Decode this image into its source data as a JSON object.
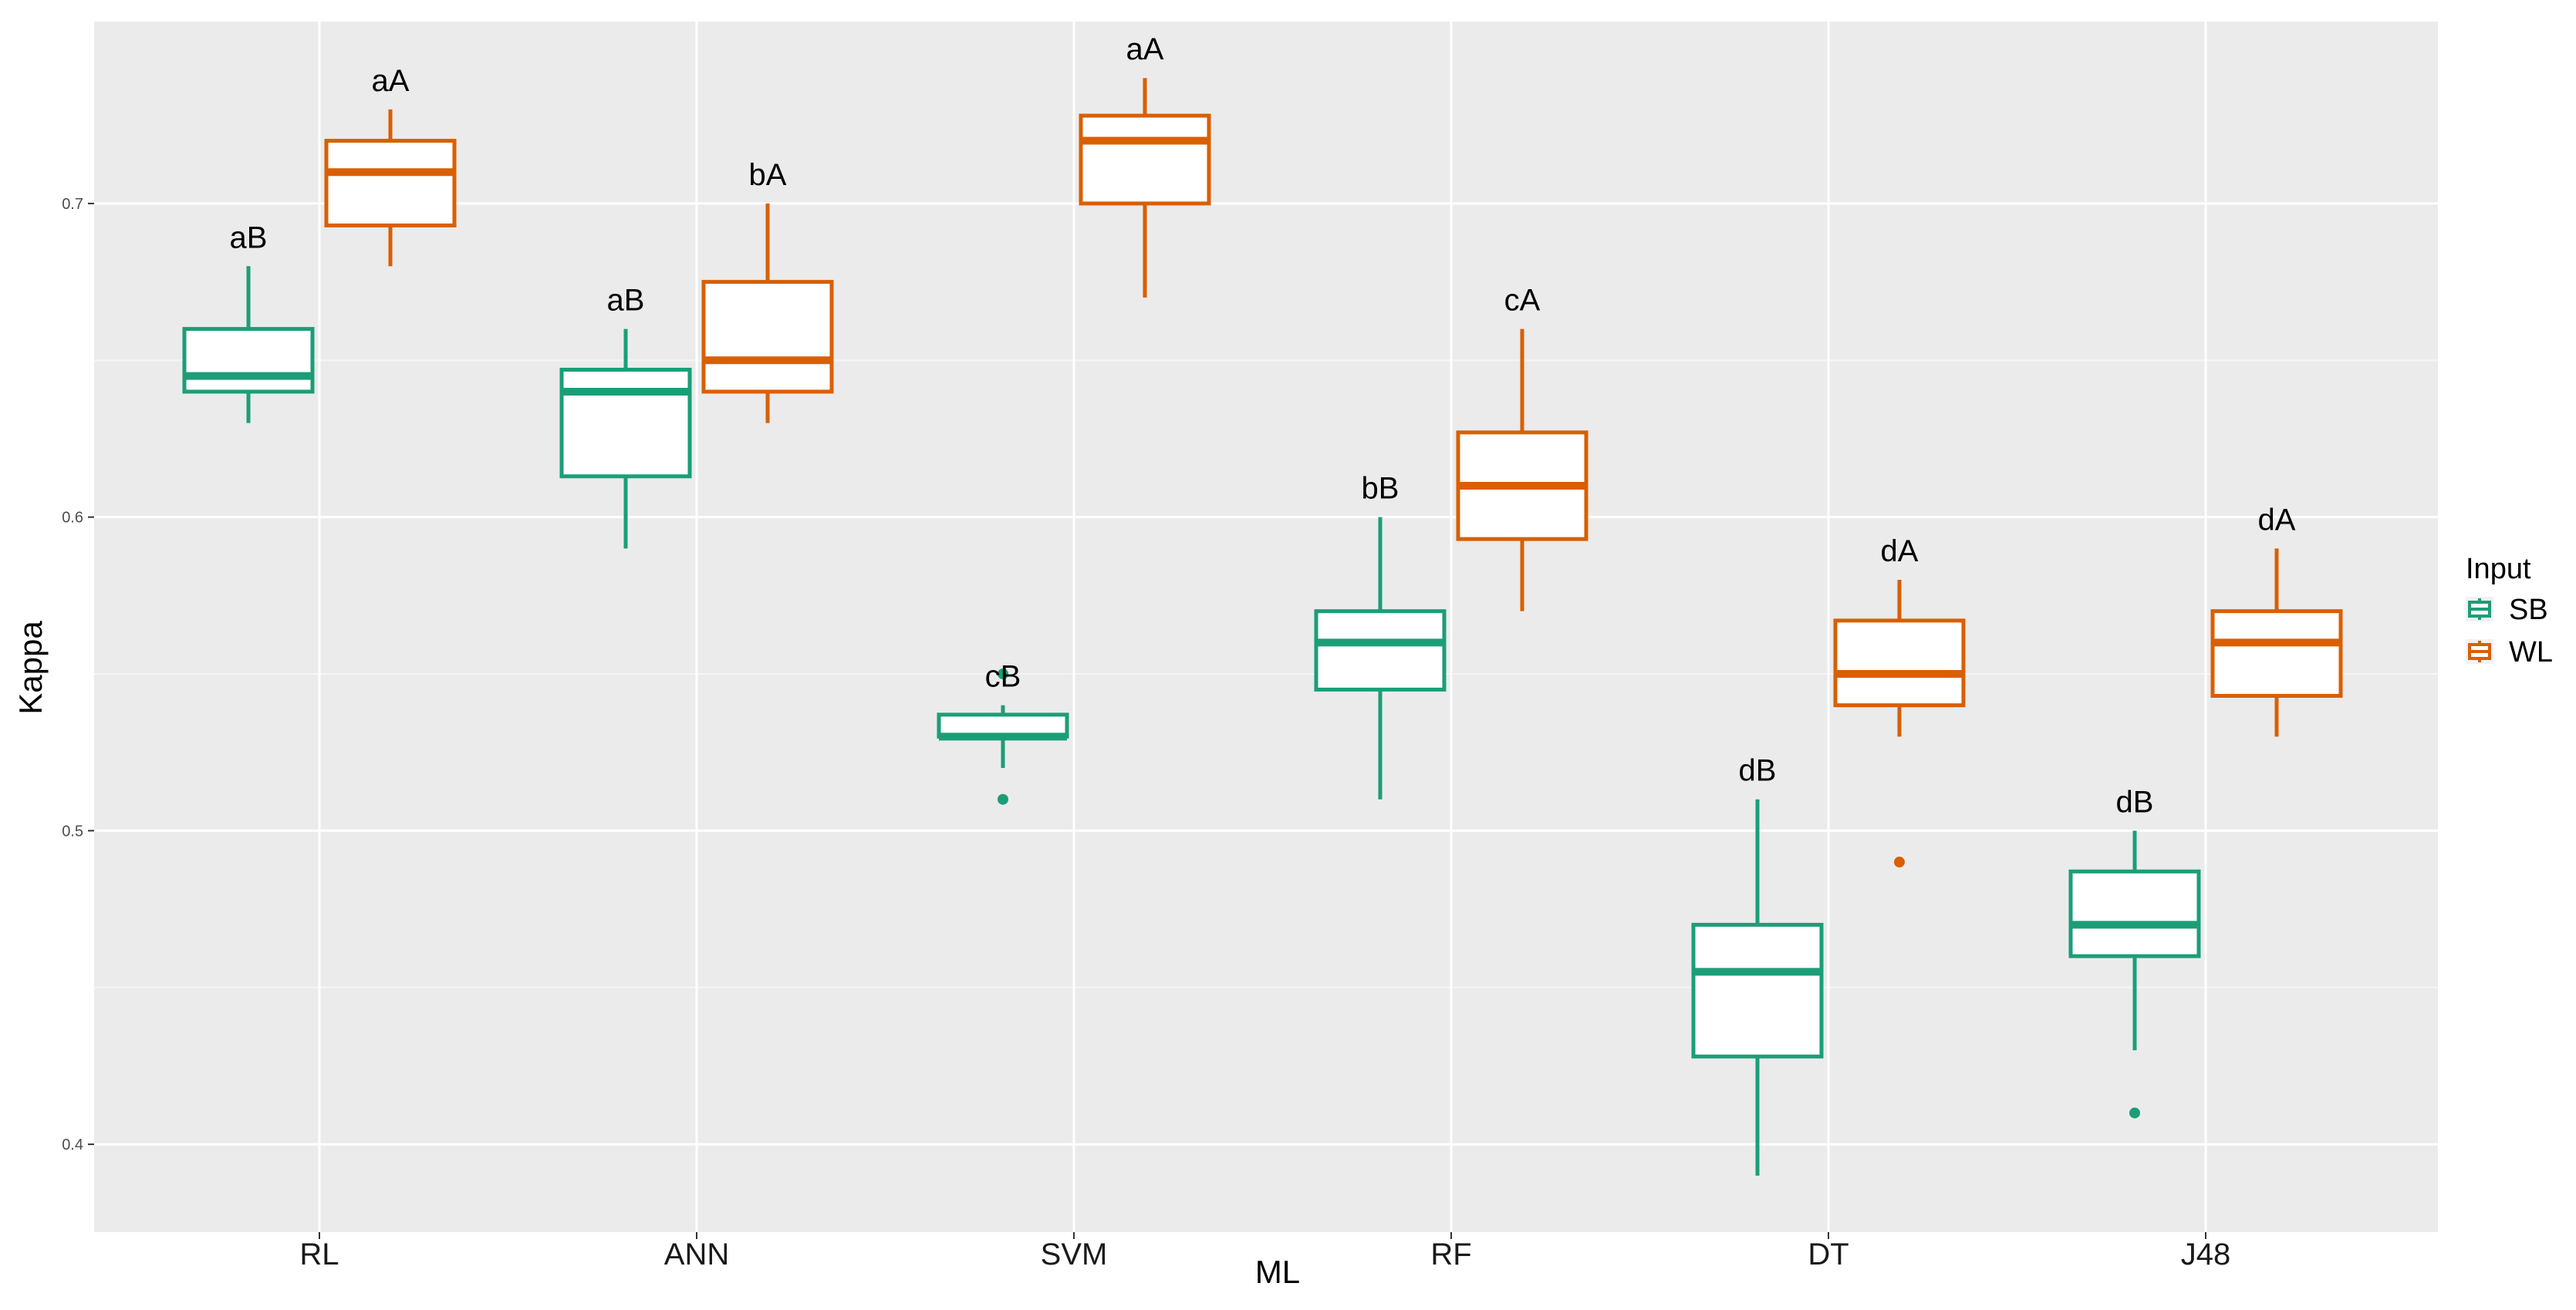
{
  "chart_data": {
    "type": "boxplot",
    "xlabel": "ML",
    "ylabel": "Kappa",
    "ylim": [
      0.372,
      0.758
    ],
    "yticks": [
      0.4,
      0.5,
      0.6,
      0.7
    ],
    "ytick_labels": [
      "0.4",
      "0.5",
      "0.6",
      "0.7"
    ],
    "categories": [
      "RL",
      "ANN",
      "SVM",
      "RF",
      "DT",
      "J48"
    ],
    "grid": true,
    "legend": {
      "title": "Input",
      "position": "right"
    },
    "series": [
      {
        "name": "SB",
        "color": "#1b9e77",
        "boxes": [
          {
            "category": "RL",
            "whisker_low": 0.63,
            "q1": 0.64,
            "median": 0.645,
            "q3": 0.66,
            "whisker_high": 0.68,
            "outliers": [],
            "label": "aB"
          },
          {
            "category": "ANN",
            "whisker_low": 0.59,
            "q1": 0.613,
            "median": 0.64,
            "q3": 0.647,
            "whisker_high": 0.66,
            "outliers": [],
            "label": "aB"
          },
          {
            "category": "SVM",
            "whisker_low": 0.52,
            "q1": 0.53,
            "median": 0.53,
            "q3": 0.537,
            "whisker_high": 0.54,
            "outliers": [
              0.55,
              0.51
            ],
            "label": "cB"
          },
          {
            "category": "RF",
            "whisker_low": 0.51,
            "q1": 0.545,
            "median": 0.56,
            "q3": 0.57,
            "whisker_high": 0.6,
            "outliers": [],
            "label": "bB"
          },
          {
            "category": "DT",
            "whisker_low": 0.39,
            "q1": 0.428,
            "median": 0.455,
            "q3": 0.47,
            "whisker_high": 0.51,
            "outliers": [],
            "label": "dB"
          },
          {
            "category": "J48",
            "whisker_low": 0.43,
            "q1": 0.46,
            "median": 0.47,
            "q3": 0.487,
            "whisker_high": 0.5,
            "outliers": [
              0.41
            ],
            "label": "dB"
          }
        ]
      },
      {
        "name": "WL",
        "color": "#d95f02",
        "boxes": [
          {
            "category": "RL",
            "whisker_low": 0.68,
            "q1": 0.693,
            "median": 0.71,
            "q3": 0.72,
            "whisker_high": 0.73,
            "outliers": [],
            "label": "aA"
          },
          {
            "category": "ANN",
            "whisker_low": 0.63,
            "q1": 0.64,
            "median": 0.65,
            "q3": 0.675,
            "whisker_high": 0.7,
            "outliers": [],
            "label": "bA"
          },
          {
            "category": "SVM",
            "whisker_low": 0.67,
            "q1": 0.7,
            "median": 0.72,
            "q3": 0.728,
            "whisker_high": 0.74,
            "outliers": [],
            "label": "aA"
          },
          {
            "category": "RF",
            "whisker_low": 0.57,
            "q1": 0.593,
            "median": 0.61,
            "q3": 0.627,
            "whisker_high": 0.66,
            "outliers": [],
            "label": "cA"
          },
          {
            "category": "DT",
            "whisker_low": 0.53,
            "q1": 0.54,
            "median": 0.55,
            "q3": 0.567,
            "whisker_high": 0.58,
            "outliers": [
              0.49
            ],
            "label": "dA"
          },
          {
            "category": "J48",
            "whisker_low": 0.53,
            "q1": 0.543,
            "median": 0.56,
            "q3": 0.57,
            "whisker_high": 0.59,
            "outliers": [],
            "label": "dA"
          }
        ]
      }
    ]
  }
}
